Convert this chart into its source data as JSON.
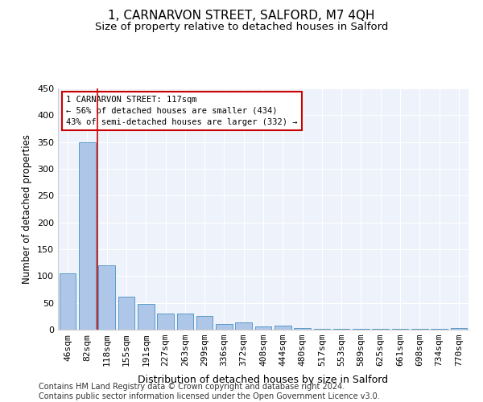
{
  "title": "1, CARNARVON STREET, SALFORD, M7 4QH",
  "subtitle": "Size of property relative to detached houses in Salford",
  "xlabel": "Distribution of detached houses by size in Salford",
  "ylabel": "Number of detached properties",
  "categories": [
    "46sqm",
    "82sqm",
    "118sqm",
    "155sqm",
    "191sqm",
    "227sqm",
    "263sqm",
    "299sqm",
    "336sqm",
    "372sqm",
    "408sqm",
    "444sqm",
    "480sqm",
    "517sqm",
    "553sqm",
    "589sqm",
    "625sqm",
    "661sqm",
    "698sqm",
    "734sqm",
    "770sqm"
  ],
  "values": [
    105,
    350,
    120,
    62,
    48,
    30,
    30,
    25,
    11,
    14,
    6,
    8,
    3,
    1,
    1,
    1,
    1,
    2,
    1,
    1,
    3
  ],
  "bar_color": "#aec6e8",
  "bar_edge_color": "#5a9ac8",
  "property_line_color": "#cc0000",
  "annotation_text": "1 CARNARVON STREET: 117sqm\n← 56% of detached houses are smaller (434)\n43% of semi-detached houses are larger (332) →",
  "annotation_box_color": "#cc0000",
  "ylim": [
    0,
    450
  ],
  "yticks": [
    0,
    50,
    100,
    150,
    200,
    250,
    300,
    350,
    400,
    450
  ],
  "background_color": "#eef2fb",
  "footer_text": "Contains HM Land Registry data © Crown copyright and database right 2024.\nContains public sector information licensed under the Open Government Licence v3.0.",
  "title_fontsize": 11,
  "subtitle_fontsize": 9.5,
  "xlabel_fontsize": 9,
  "ylabel_fontsize": 8.5,
  "tick_fontsize": 8,
  "footer_fontsize": 7
}
